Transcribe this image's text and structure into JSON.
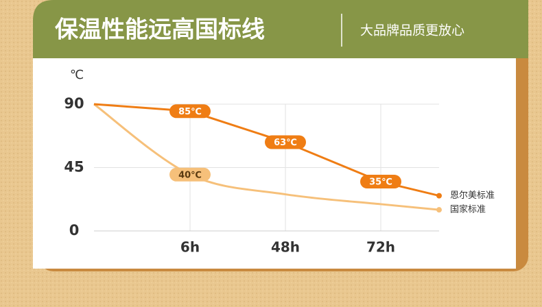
{
  "header": {
    "title": "保温性能远高国标线",
    "subtitle": "大品牌品质更放心"
  },
  "chart_data": {
    "type": "line",
    "y_label": "℃",
    "categories": [
      null,
      "6h",
      "48h",
      "72h",
      null
    ],
    "series": [
      {
        "name": "恩尔美标准",
        "color": "#ef7d14",
        "values": [
          90,
          85,
          63,
          35,
          25
        ],
        "value_labels": [
          null,
          "85℃",
          "63℃",
          "35℃",
          null
        ]
      },
      {
        "name": "国家标准",
        "color": "#f6c07a",
        "values": [
          90,
          40,
          26,
          19,
          15
        ],
        "value_labels": [
          null,
          "40℃",
          null,
          null,
          null
        ]
      }
    ],
    "ylim": [
      0,
      90
    ],
    "yticks": [
      0,
      45,
      90
    ],
    "grid": true
  }
}
